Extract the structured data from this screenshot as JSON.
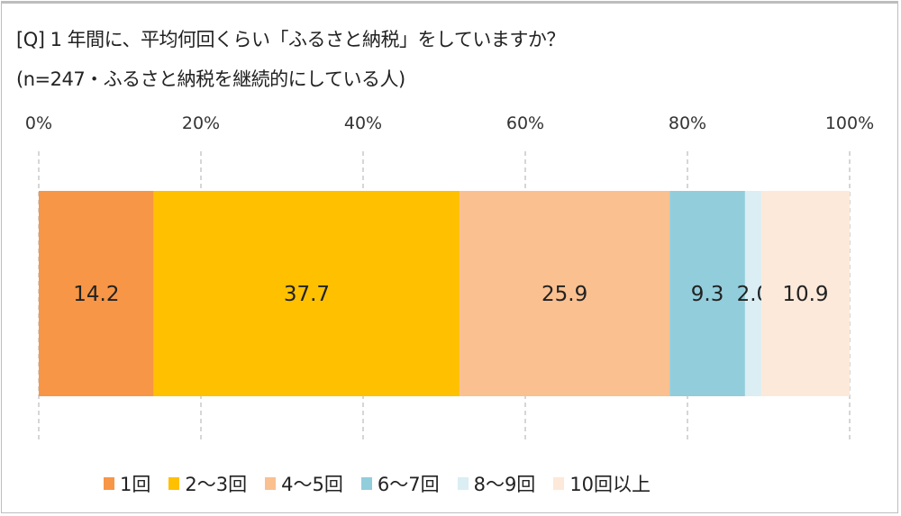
{
  "title_line1": "[Q] 1 年間に、平均何回くらい「ふるさと納税」をしていますか？",
  "title_line2": "(n=247・ふるさと納税を継続的にしている人)",
  "chart_data": {
    "type": "bar",
    "orientation": "horizontal-stacked-100",
    "title": "[Q] 1 年間に、平均何回くらい「ふるさと納税」をしていますか？",
    "subtitle": "(n=247・ふるさと納税を継続的にしている人)",
    "xlim": [
      0,
      100
    ],
    "x_ticks": [
      "0%",
      "20%",
      "40%",
      "60%",
      "80%",
      "100%"
    ],
    "grid": true,
    "legend_position": "bottom",
    "series": [
      {
        "name": "1回",
        "value": 14.2,
        "label": "14.2",
        "color": "#F79646"
      },
      {
        "name": "2～3回",
        "value": 37.7,
        "label": "37.7",
        "color": "#FFC000"
      },
      {
        "name": "4～5回",
        "value": 25.9,
        "label": "25.9",
        "color": "#FAC090"
      },
      {
        "name": "6～7回",
        "value": 9.3,
        "label": "9.3",
        "color": "#92CDDC"
      },
      {
        "name": "8～9回",
        "value": 2.0,
        "label": "2.0",
        "color": "#DAEEF3"
      },
      {
        "name": "10回以上",
        "value": 10.9,
        "label": "10.9",
        "color": "#FDE9D9"
      }
    ]
  }
}
